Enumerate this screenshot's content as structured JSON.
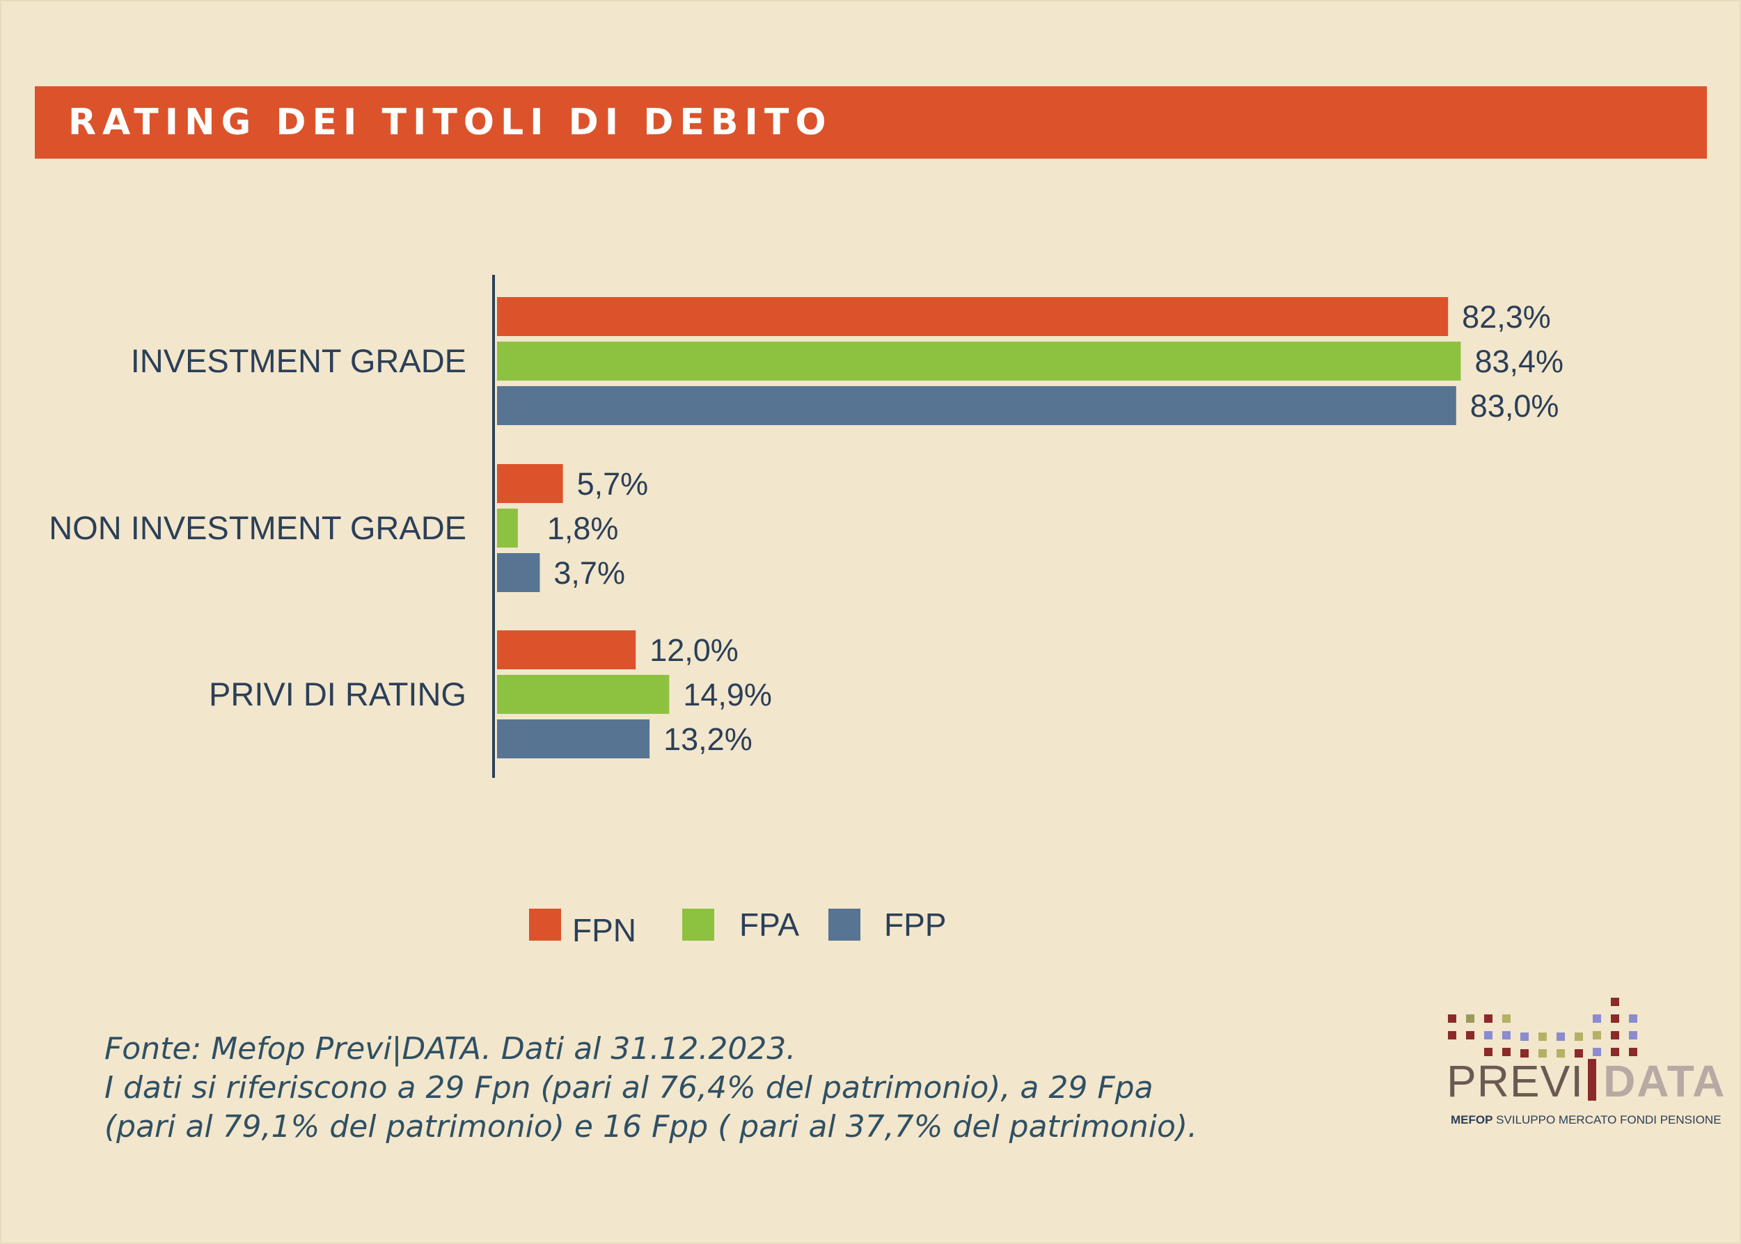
{
  "header": {
    "title": "RATING DEI TITOLI DI DEBITO"
  },
  "colors": {
    "FPN": "#dc532b",
    "FPA": "#8dc240",
    "FPP": "#577493",
    "title_bar": "#dc532b",
    "background": "#f2e6cc",
    "text": "#2b3f58"
  },
  "chart_data": {
    "type": "bar",
    "orientation": "horizontal",
    "categories": [
      "INVESTMENT GRADE",
      "NON INVESTMENT GRADE",
      "PRIVI DI RATING"
    ],
    "series": [
      {
        "name": "FPN",
        "values": [
          82.3,
          5.7,
          12.0
        ],
        "labels": [
          "82,3%",
          "5,7%",
          "12,0%"
        ]
      },
      {
        "name": "FPA",
        "values": [
          83.4,
          1.8,
          14.9
        ],
        "labels": [
          "83,4%",
          "1,8%",
          "14,9%"
        ]
      },
      {
        "name": "FPP",
        "values": [
          83.0,
          3.7,
          13.2
        ],
        "labels": [
          "83,0%",
          "3,7%",
          "13,2%"
        ]
      }
    ],
    "xlim": [
      0,
      100
    ],
    "unit": "%",
    "grid": false,
    "legend_position": "bottom-center"
  },
  "source": {
    "line1": "Fonte: Mefop Previ|DATA. Dati al 31.12.2023.",
    "line2": "I dati si riferiscono a 29 Fpn (pari al 76,4% del patrimonio), a 29 Fpa",
    "line3": "(pari al 79,1% del patrimonio) e 16 Fpp ( pari al 37,7% del patrimonio)."
  },
  "logo": {
    "previ": "PREVI",
    "data": "DATA",
    "sub_bold": "MEFOP",
    "sub_rest": " SVILUPPO MERCATO FONDI PENSIONE"
  }
}
